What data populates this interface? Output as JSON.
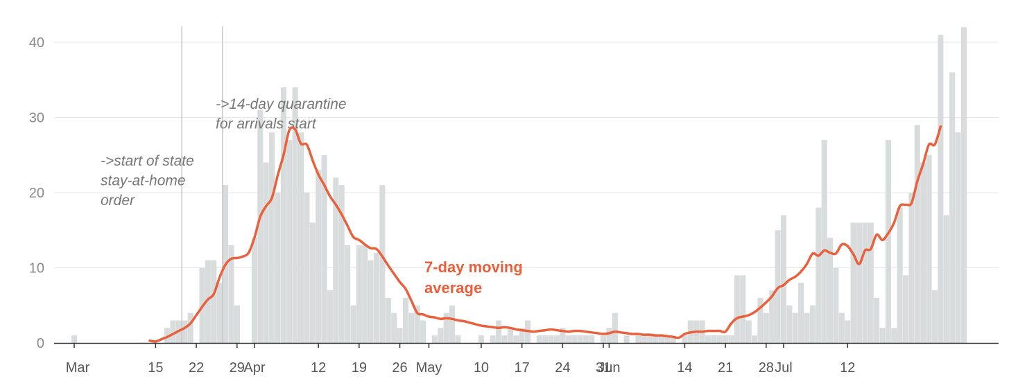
{
  "chart_data": {
    "type": "bar",
    "title": "",
    "xlabel": "",
    "ylabel": "",
    "ylim": [
      0,
      42
    ],
    "grid": true,
    "x_start_date": "2020-03-01",
    "y_ticks": [
      "0",
      "10",
      "20",
      "30",
      "40"
    ],
    "x_tick_labels": [
      "Mar",
      "15",
      "22",
      "29",
      "Apr",
      "12",
      "19",
      "26",
      "May",
      "10",
      "17",
      "24",
      "31",
      "Jun",
      "14",
      "21",
      "28",
      "Jul",
      "12"
    ],
    "x_tick_days": [
      0,
      14,
      21,
      28,
      31,
      42,
      49,
      56,
      61,
      70,
      77,
      84,
      91,
      92,
      105,
      112,
      119,
      122,
      133
    ],
    "colors": {
      "bars": "#d9dcdc",
      "average": "#e8603c",
      "grid": "#e6e6e6",
      "annotation_line": "#c8c8c8"
    },
    "bar_values": [
      1,
      0,
      0,
      0,
      0,
      0,
      0,
      0,
      0,
      0,
      0,
      0,
      0,
      0,
      0,
      0,
      2,
      3,
      3,
      3,
      4,
      0,
      10,
      11,
      11,
      8,
      21,
      13,
      5,
      0,
      0,
      14,
      31,
      24,
      28,
      20,
      34,
      27,
      34,
      28,
      20,
      16,
      23,
      25,
      7,
      22,
      21,
      13,
      5,
      13,
      13,
      11,
      12,
      21,
      6,
      4,
      2,
      6,
      4,
      5,
      3,
      0,
      1,
      2,
      4,
      5,
      1,
      0,
      0,
      0,
      1,
      0,
      1,
      3,
      1,
      2,
      1,
      2,
      3,
      0,
      1,
      1,
      1,
      1,
      2,
      1,
      1,
      1,
      1,
      1,
      0,
      1,
      2,
      4,
      0,
      1,
      0,
      1,
      1,
      1,
      1,
      1,
      1,
      1,
      0,
      1,
      3,
      3,
      3,
      1,
      1,
      1,
      1,
      1,
      9,
      9,
      3,
      1,
      6,
      4,
      7,
      15,
      17,
      5,
      4,
      8,
      4,
      5,
      18,
      27,
      14,
      10,
      4,
      3,
      16,
      16,
      16,
      16,
      6,
      2,
      27,
      2,
      18,
      9,
      20,
      29,
      24,
      25,
      7,
      41,
      17,
      36,
      28,
      42
    ],
    "average_series": {
      "name": "7-day moving average",
      "values": [
        null,
        null,
        null,
        null,
        null,
        null,
        null,
        null,
        null,
        null,
        null,
        null,
        null,
        0.3,
        0.2,
        0.5,
        0.8,
        1.2,
        1.6,
        2.0,
        2.6,
        3.7,
        4.8,
        5.8,
        6.5,
        8.7,
        10.4,
        11.2,
        11.3,
        11.5,
        12.0,
        14.0,
        16.8,
        18.2,
        19.3,
        22.3,
        25.0,
        28.3,
        28.4,
        26.5,
        26.4,
        24.3,
        22.4,
        21.0,
        19.5,
        18.4,
        17.1,
        15.6,
        14.1,
        13.7,
        13.1,
        12.6,
        12.5,
        11.5,
        10.3,
        9.2,
        8.1,
        7.2,
        5.6,
        4.0,
        3.8,
        3.5,
        3.4,
        3.2,
        3.3,
        3.2,
        3.0,
        2.9,
        2.7,
        2.5,
        2.3,
        2.2,
        2.1,
        2.0,
        2.1,
        2.0,
        1.8,
        1.7,
        1.6,
        1.5,
        1.6,
        1.7,
        1.8,
        1.7,
        1.6,
        1.5,
        1.6,
        1.6,
        1.5,
        1.4,
        1.3,
        1.2,
        1.3,
        1.5,
        1.4,
        1.3,
        1.2,
        1.2,
        1.1,
        1.1,
        1.0,
        1.0,
        0.9,
        0.8,
        0.7,
        1.2,
        1.4,
        1.5,
        1.5,
        1.6,
        1.6,
        1.6,
        1.5,
        2.6,
        3.3,
        3.5,
        3.7,
        4.1,
        4.7,
        5.4,
        6.2,
        7.3,
        7.7,
        8.4,
        8.8,
        9.5,
        10.5,
        11.9,
        11.6,
        12.3,
        12.0,
        11.9,
        13.1,
        12.9,
        11.8,
        10.5,
        12.3,
        12.5,
        14.4,
        13.7,
        14.6,
        16.0,
        18.2,
        18.4,
        18.6,
        21.5,
        23.8,
        26.4,
        26.4,
        28.8
      ]
    },
    "annotations": [
      {
        "id": "stay-at-home",
        "day": 19,
        "lines": [
          "->start of state",
          "stay-at-home",
          "order"
        ]
      },
      {
        "id": "quarantine",
        "day": 26,
        "lines": [
          "->14-day quarantine",
          "for arrivals start"
        ]
      }
    ],
    "series_label_lines": [
      "7-day moving",
      "average"
    ]
  }
}
